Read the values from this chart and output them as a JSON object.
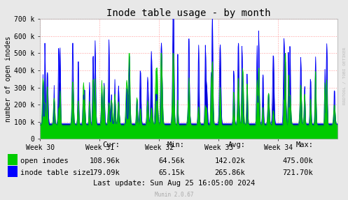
{
  "title": "Inode table usage - by month",
  "ylabel": "number of open inodes",
  "background_color": "#e8e8e8",
  "plot_bg_color": "#ffffff",
  "grid_color": "#ff9999",
  "ylim": [
    0,
    700000
  ],
  "yticks": [
    0,
    100000,
    200000,
    300000,
    400000,
    500000,
    600000,
    700000
  ],
  "ytick_labels": [
    "0",
    "100 k",
    "200 k",
    "300 k",
    "400 k",
    "500 k",
    "600 k",
    "700 k"
  ],
  "xtick_labels": [
    "Week 30",
    "Week 31",
    "Week 32",
    "Week 33",
    "Week 34"
  ],
  "color_green": "#00cc00",
  "color_blue": "#0000ff",
  "fill_blue": "#0000cc",
  "legend_labels": [
    "open inodes",
    "inode table size"
  ],
  "cur_green": "108.96k",
  "min_green": "64.56k",
  "avg_green": "142.02k",
  "max_green": "475.00k",
  "cur_blue": "179.09k",
  "min_blue": "65.15k",
  "avg_blue": "265.86k",
  "max_blue": "721.70k",
  "last_update": "Last update: Sun Aug 25 16:05:00 2024",
  "munin_version": "Munin 2.0.67",
  "rrdtool_label": "RRDTOOL / TOBI OETIKER",
  "title_fontsize": 10,
  "label_fontsize": 7,
  "tick_fontsize": 7,
  "legend_fontsize": 7.5,
  "n_weeks": 5,
  "samples": 800
}
